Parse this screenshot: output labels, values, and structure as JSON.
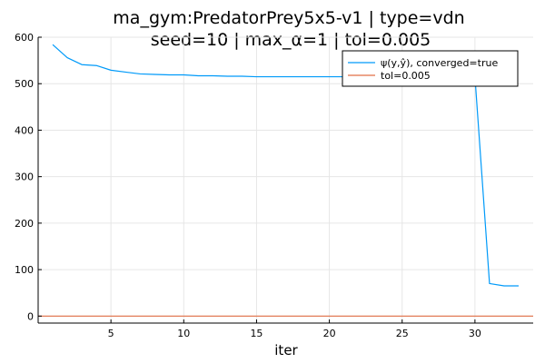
{
  "chart_data": {
    "type": "line",
    "title_lines": [
      "ma_gym:PredatorPrey5x5-v1 | type=vdn",
      "seed=10 | max_α=1 | tol=0.005"
    ],
    "xlabel": "iter",
    "ylabel": "",
    "xlim": [
      0,
      34
    ],
    "ylim": [
      -15,
      600
    ],
    "x_ticks": [
      5,
      10,
      15,
      20,
      25,
      30
    ],
    "y_ticks": [
      0,
      100,
      200,
      300,
      400,
      500,
      600
    ],
    "grid": true,
    "legend_position": "top-right",
    "series": [
      {
        "name": "ψ(y,ŷ), converged=true",
        "color": "#009AF9",
        "x": [
          1,
          2,
          3,
          4,
          5,
          6,
          7,
          8,
          9,
          10,
          11,
          12,
          13,
          14,
          15,
          16,
          17,
          18,
          19,
          20,
          21,
          22,
          23,
          24,
          25,
          26,
          27,
          28,
          29,
          30,
          31,
          32,
          33
        ],
        "y": [
          584,
          556,
          541,
          539,
          529,
          525,
          521,
          520,
          519,
          519,
          517,
          517,
          516,
          516,
          515,
          515,
          515,
          515,
          515,
          515,
          515,
          515,
          515,
          515,
          515,
          515,
          515,
          515,
          515,
          515,
          70,
          65,
          65
        ]
      },
      {
        "name": "tol=0.005",
        "color": "#E26F46",
        "x": [
          0,
          34
        ],
        "y": [
          0.005,
          0.005
        ]
      }
    ]
  }
}
